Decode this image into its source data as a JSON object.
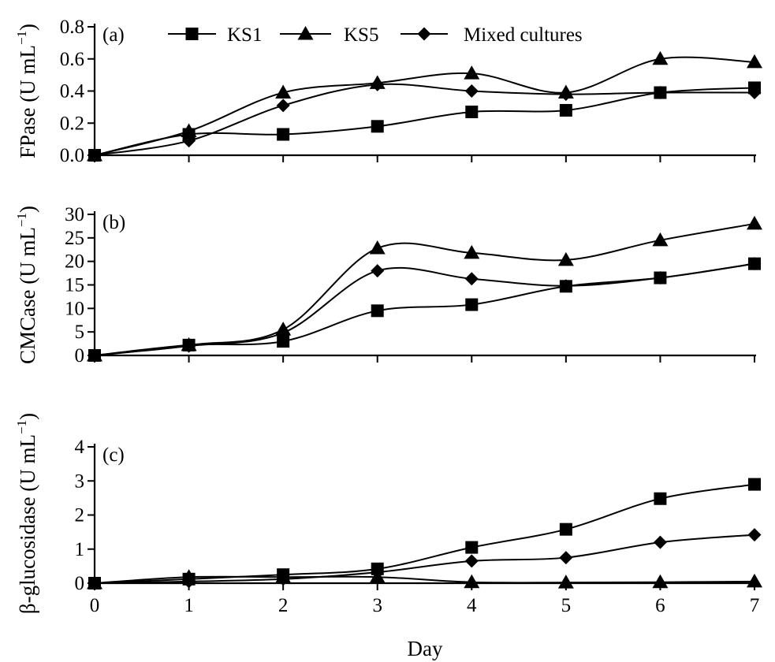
{
  "chart_data": [
    {
      "type": "line",
      "panel": "(a)",
      "ylabel": "FPase (U mL",
      "ylabel_sup": "−1",
      "ylabel_end": ")",
      "xlabel": "",
      "x": [
        0,
        1,
        2,
        3,
        4,
        5,
        6,
        7
      ],
      "xlim": [
        0,
        7
      ],
      "ylim": [
        0,
        0.8
      ],
      "yticks": [
        0,
        0.2,
        0.4,
        0.6,
        0.8
      ],
      "ytick_labels": [
        "0.0",
        "0.2",
        "0.4",
        "0.6",
        "0.8"
      ],
      "xtick_labels": [],
      "legend": "top",
      "series": [
        {
          "name": "KS1",
          "marker": "square",
          "values": [
            0,
            0.13,
            0.13,
            0.18,
            0.27,
            0.28,
            0.39,
            0.42
          ]
        },
        {
          "name": "KS5",
          "marker": "triangle",
          "values": [
            0,
            0.15,
            0.39,
            0.45,
            0.51,
            0.39,
            0.6,
            0.58
          ]
        },
        {
          "name": "Mixed cultures",
          "marker": "diamond",
          "values": [
            0,
            0.09,
            0.31,
            0.44,
            0.4,
            0.38,
            0.39,
            0.39
          ]
        }
      ]
    },
    {
      "type": "line",
      "panel": "(b)",
      "ylabel": "CMCase (U mL",
      "ylabel_sup": "−1",
      "ylabel_end": ")",
      "xlabel": "",
      "x": [
        0,
        1,
        2,
        3,
        4,
        5,
        6,
        7
      ],
      "xlim": [
        0,
        7
      ],
      "ylim": [
        0,
        30
      ],
      "yticks": [
        0,
        5,
        10,
        15,
        20,
        25,
        30
      ],
      "ytick_labels": [
        "0",
        "5",
        "10",
        "15",
        "20",
        "25",
        "30"
      ],
      "xtick_labels": [],
      "series": [
        {
          "name": "KS1",
          "marker": "square",
          "values": [
            0,
            2.2,
            3.0,
            9.5,
            10.8,
            14.7,
            16.5,
            19.5
          ]
        },
        {
          "name": "KS5",
          "marker": "triangle",
          "values": [
            0,
            2.2,
            5.5,
            22.8,
            21.8,
            20.3,
            24.5,
            28.0
          ]
        },
        {
          "name": "Mixed cultures",
          "marker": "diamond",
          "values": [
            0,
            2.0,
            4.8,
            18.0,
            16.3,
            14.8,
            16.5,
            19.5
          ]
        }
      ]
    },
    {
      "type": "line",
      "panel": "(c)",
      "ylabel": "β-glucosidase (U mL",
      "ylabel_sup": "−1",
      "ylabel_end": ")",
      "xlabel": "Day",
      "x": [
        0,
        1,
        2,
        3,
        4,
        5,
        6,
        7
      ],
      "xlim": [
        0,
        7
      ],
      "ylim": [
        0,
        4
      ],
      "yticks": [
        0,
        1,
        2,
        3,
        4
      ],
      "ytick_labels": [
        "0",
        "1",
        "2",
        "3",
        "4"
      ],
      "xtick_labels": [
        "0",
        "1",
        "2",
        "3",
        "4",
        "5",
        "6",
        "7"
      ],
      "series": [
        {
          "name": "KS1",
          "marker": "square",
          "values": [
            0,
            0.12,
            0.25,
            0.42,
            1.05,
            1.58,
            2.48,
            2.9
          ]
        },
        {
          "name": "KS5",
          "marker": "triangle",
          "values": [
            0,
            0.18,
            0.18,
            0.18,
            0.03,
            0.02,
            0.03,
            0.05
          ]
        },
        {
          "name": "Mixed cultures",
          "marker": "diamond",
          "values": [
            0,
            0.05,
            0.12,
            0.32,
            0.65,
            0.75,
            1.2,
            1.42
          ]
        }
      ]
    }
  ]
}
